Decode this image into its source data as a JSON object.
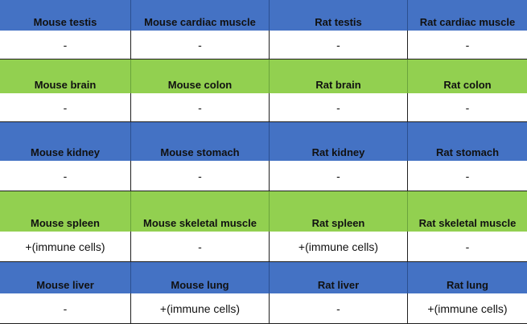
{
  "table": {
    "colors": {
      "blue": "#4472c4",
      "green": "#92d050",
      "white": "#ffffff"
    },
    "groups": [
      {
        "band": "blue",
        "headers": [
          "Mouse testis",
          "Mouse cardiac muscle",
          "Rat testis",
          "Rat cardiac muscle"
        ],
        "values": [
          "-",
          "-",
          "-",
          "-"
        ]
      },
      {
        "band": "green",
        "headers": [
          "Mouse brain",
          "Mouse colon",
          "Rat brain",
          "Rat colon"
        ],
        "values": [
          "-",
          "-",
          "-",
          "-"
        ]
      },
      {
        "band": "blue",
        "headers": [
          "Mouse kidney",
          "Mouse stomach",
          "Rat kidney",
          "Rat stomach"
        ],
        "values": [
          "-",
          "-",
          "-",
          "-"
        ]
      },
      {
        "band": "green",
        "headers": [
          "Mouse spleen",
          "Mouse skeletal muscle",
          "Rat spleen",
          "Rat skeletal muscle"
        ],
        "values": [
          "+(immune cells)",
          "-",
          "+(immune cells)",
          "-"
        ]
      },
      {
        "band": "blue",
        "headers": [
          "Mouse liver",
          "Mouse lung",
          "Rat liver",
          "Rat lung"
        ],
        "values": [
          "-",
          "+(immune cells)",
          "-",
          "+(immune cells)"
        ]
      }
    ]
  }
}
